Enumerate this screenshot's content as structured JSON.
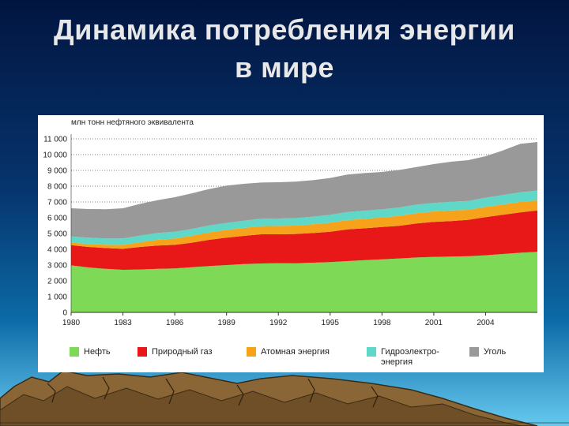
{
  "title": {
    "line1": "Динамика потребления энергии",
    "line2": "в мире"
  },
  "chart_data": {
    "type": "area",
    "stacked": true,
    "ylabel": "млн тонн нефтяного эквивалента",
    "ylim": [
      0,
      11000
    ],
    "y_ticks": [
      0,
      1000,
      2000,
      3000,
      4000,
      5000,
      6000,
      7000,
      8000,
      9000,
      10000,
      11000
    ],
    "y_tick_labels": [
      "0",
      "1 000",
      "2 000",
      "3 000",
      "4 000",
      "5 000",
      "6 000",
      "7 000",
      "8 000",
      "9 000",
      "10 000",
      "11 000"
    ],
    "x_ticks": [
      1980,
      1983,
      1986,
      1989,
      1992,
      1995,
      1998,
      2001,
      2004
    ],
    "x_tick_labels": [
      "1980",
      "1983",
      "1986",
      "1989",
      "1992",
      "1995",
      "1998",
      "2001",
      "2004"
    ],
    "xlim": [
      1980,
      2007
    ],
    "grid": "horizontal-dotted",
    "legend_position": "bottom",
    "x": [
      1980,
      1981,
      1982,
      1983,
      1984,
      1985,
      1986,
      1987,
      1988,
      1989,
      1990,
      1991,
      1992,
      1993,
      1994,
      1995,
      1996,
      1997,
      1998,
      1999,
      2000,
      2001,
      2002,
      2003,
      2004,
      2005,
      2006,
      2007
    ],
    "series": [
      {
        "name": "Нефть",
        "color": "#7ed957",
        "values": [
          2980,
          2850,
          2760,
          2700,
          2720,
          2760,
          2790,
          2860,
          2940,
          3000,
          3060,
          3100,
          3120,
          3110,
          3150,
          3190,
          3250,
          3310,
          3360,
          3420,
          3480,
          3520,
          3540,
          3560,
          3620,
          3700,
          3780,
          3840
        ]
      },
      {
        "name": "Природный газ",
        "color": "#e81818",
        "values": [
          1280,
          1300,
          1320,
          1330,
          1430,
          1480,
          1490,
          1560,
          1660,
          1740,
          1790,
          1850,
          1830,
          1860,
          1880,
          1920,
          2010,
          2020,
          2050,
          2070,
          2160,
          2220,
          2250,
          2310,
          2420,
          2490,
          2560,
          2620
        ]
      },
      {
        "name": "Атомная энергия",
        "color": "#f7a21b",
        "values": [
          160,
          190,
          210,
          250,
          300,
          360,
          400,
          440,
          470,
          490,
          500,
          520,
          530,
          530,
          560,
          570,
          590,
          600,
          600,
          630,
          650,
          660,
          670,
          630,
          650,
          650,
          660,
          640
        ]
      },
      {
        "name": "Гидроэлектро-\nэнергия",
        "color": "#5fd8c8",
        "values": [
          390,
          400,
          400,
          410,
          420,
          430,
          430,
          430,
          440,
          440,
          460,
          470,
          470,
          480,
          480,
          500,
          510,
          520,
          520,
          530,
          540,
          540,
          550,
          560,
          580,
          600,
          610,
          620
        ]
      },
      {
        "name": "Уголь",
        "color": "#999999",
        "values": [
          1790,
          1810,
          1850,
          1910,
          2010,
          2080,
          2190,
          2260,
          2310,
          2370,
          2340,
          2290,
          2300,
          2310,
          2310,
          2340,
          2380,
          2380,
          2370,
          2380,
          2380,
          2460,
          2540,
          2590,
          2630,
          2820,
          3070,
          3080
        ]
      }
    ]
  },
  "colors": {
    "sky_top": "#021a4d",
    "sky_mid": "#0b5f9a",
    "sky_low": "#5fc0e8",
    "mountain": "#7a5a30",
    "mountain_dark": "#3b2a14",
    "title_text": "#e8e8e8"
  }
}
